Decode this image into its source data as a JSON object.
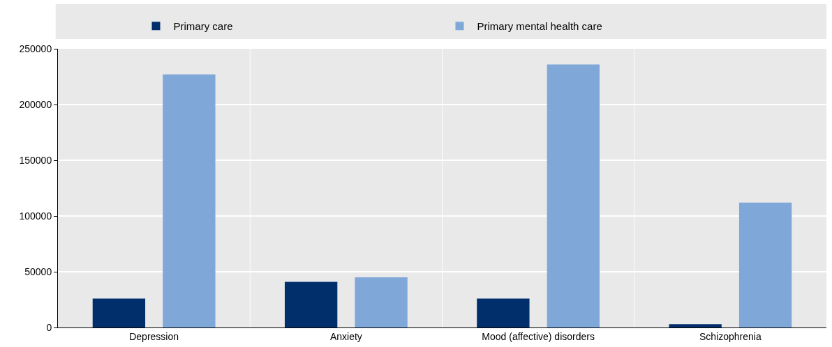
{
  "chart_data": {
    "type": "bar",
    "categories": [
      "Depression",
      "Anxiety",
      "Mood (affective) disorders",
      "Schizophrenia"
    ],
    "series": [
      {
        "name": "Primary care",
        "color": "#002f6c",
        "values": [
          26000,
          41000,
          26000,
          3000
        ]
      },
      {
        "name": "Primary mental health care",
        "color": "#7fa8d9",
        "values": [
          227000,
          45000,
          236000,
          112000
        ]
      }
    ],
    "ylim": [
      0,
      250000
    ],
    "yticks": [
      0,
      50000,
      100000,
      150000,
      200000,
      250000
    ],
    "grid": true,
    "legend": "top"
  }
}
